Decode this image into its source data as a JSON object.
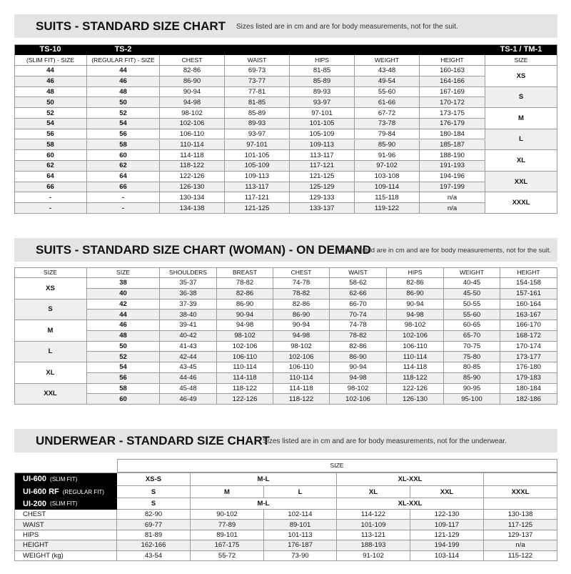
{
  "suits": {
    "title": "SUITS - STANDARD SIZE CHART",
    "note": "Sizes listed are in cm and are for body measurements, not for the suit.",
    "top_headers": [
      "TS-10",
      "TS-2",
      "TS-1 / TM-1"
    ],
    "headers": [
      "(SLIM FIT) - SIZE",
      "(REGULAR FIT) - SIZE",
      "CHEST",
      "WAIST",
      "HIPS",
      "WEIGHT",
      "HEIGHT",
      "SIZE"
    ],
    "rows": [
      [
        "44",
        "44",
        "82-86",
        "69-73",
        "81-85",
        "43-48",
        "160-163"
      ],
      [
        "46",
        "46",
        "86-90",
        "73-77",
        "85-89",
        "49-54",
        "164-166"
      ],
      [
        "48",
        "48",
        "90-94",
        "77-81",
        "89-93",
        "55-60",
        "167-169"
      ],
      [
        "50",
        "50",
        "94-98",
        "81-85",
        "93-97",
        "61-66",
        "170-172"
      ],
      [
        "52",
        "52",
        "98-102",
        "85-89",
        "97-101",
        "67-72",
        "173-175"
      ],
      [
        "54",
        "54",
        "102-106",
        "89-93",
        "101-105",
        "73-78",
        "176-179"
      ],
      [
        "56",
        "56",
        "106-110",
        "93-97",
        "105-109",
        "79-84",
        "180-184"
      ],
      [
        "58",
        "58",
        "110-114",
        "97-101",
        "109-113",
        "85-90",
        "185-187"
      ],
      [
        "60",
        "60",
        "114-118",
        "101-105",
        "113-117",
        "91-96",
        "188-190"
      ],
      [
        "62",
        "62",
        "118-122",
        "105-109",
        "117-121",
        "97-102",
        "191-193"
      ],
      [
        "64",
        "64",
        "122-126",
        "109-113",
        "121-125",
        "103-108",
        "194-196"
      ],
      [
        "66",
        "66",
        "126-130",
        "113-117",
        "125-129",
        "109-114",
        "197-199"
      ],
      [
        "-",
        "-",
        "130-134",
        "117-121",
        "129-133",
        "115-118",
        "n/a"
      ],
      [
        "-",
        "-",
        "134-138",
        "121-125",
        "133-137",
        "119-122",
        "n/a"
      ]
    ],
    "sizes": [
      "XS",
      "S",
      "M",
      "L",
      "XL",
      "XXL",
      "XXXL"
    ]
  },
  "woman": {
    "title": "SUITS - STANDARD SIZE CHART (WOMAN) - ON DEMAND",
    "note": "Sizes listed are in cm and are for body measurements, not for the suit.",
    "headers": [
      "SIZE",
      "SIZE",
      "SHOULDERS",
      "BREAST",
      "CHEST",
      "WAIST",
      "HIPS",
      "WEIGHT",
      "HEIGHT"
    ],
    "rows": [
      [
        "38",
        "35-37",
        "78-82",
        "74-78",
        "58-62",
        "82-86",
        "40-45",
        "154-158"
      ],
      [
        "40",
        "36-38",
        "82-86",
        "78-82",
        "62-66",
        "86-90",
        "45-50",
        "157-161"
      ],
      [
        "42",
        "37-39",
        "86-90",
        "82-86",
        "66-70",
        "90-94",
        "50-55",
        "160-164"
      ],
      [
        "44",
        "38-40",
        "90-94",
        "86-90",
        "70-74",
        "94-98",
        "55-60",
        "163-167"
      ],
      [
        "46",
        "39-41",
        "94-98",
        "90-94",
        "74-78",
        "98-102",
        "60-65",
        "166-170"
      ],
      [
        "48",
        "40-42",
        "98-102",
        "94-98",
        "78-82",
        "102-106",
        "65-70",
        "168-172"
      ],
      [
        "50",
        "41-43",
        "102-106",
        "98-102",
        "82-86",
        "106-110",
        "70-75",
        "170-174"
      ],
      [
        "52",
        "42-44",
        "106-110",
        "102-106",
        "86-90",
        "110-114",
        "75-80",
        "173-177"
      ],
      [
        "54",
        "43-45",
        "110-114",
        "106-110",
        "90-94",
        "114-118",
        "80-85",
        "176-180"
      ],
      [
        "56",
        "44-46",
        "114-118",
        "110-114",
        "94-98",
        "118-122",
        "85-90",
        "179-183"
      ],
      [
        "58",
        "45-48",
        "118-122",
        "114-118",
        "98-102",
        "122-126",
        "90-95",
        "180-184"
      ],
      [
        "60",
        "46-49",
        "122-126",
        "118-122",
        "102-106",
        "126-130",
        "95-100",
        "182-186"
      ]
    ],
    "sizes": [
      "XS",
      "S",
      "M",
      "L",
      "XL",
      "XXL"
    ]
  },
  "underwear": {
    "title": "UNDERWEAR - STANDARD SIZE CHART",
    "note": "Sizes listed are in cm and are for body measurements, not for the underwear.",
    "size_header": "SIZE",
    "lines": [
      {
        "name": "UI-600",
        "fit": "(SLIM FIT)",
        "cells": [
          "XS-S",
          "M-L",
          "XL-XXL"
        ]
      },
      {
        "name": "UI-600 RF",
        "fit": "(REGULAR FIT)",
        "cells": [
          "S",
          "M",
          "L",
          "XL",
          "XXL",
          "XXXL"
        ]
      },
      {
        "name": "UI-200",
        "fit": "(SLIM FIT)",
        "cells": [
          "S",
          "M-L",
          "XL-XXL"
        ]
      }
    ],
    "rows": [
      {
        "label": "CHEST",
        "values": [
          "82-90",
          "90-102",
          "102-114",
          "114-122",
          "122-130",
          "130-138"
        ]
      },
      {
        "label": "WAIST",
        "values": [
          "69-77",
          "77-89",
          "89-101",
          "101-109",
          "109-117",
          "117-125"
        ]
      },
      {
        "label": "HIPS",
        "values": [
          "81-89",
          "89-101",
          "101-113",
          "113-121",
          "121-129",
          "129-137"
        ]
      },
      {
        "label": "HEIGHT",
        "values": [
          "162-166",
          "167-175",
          "176-187",
          "188-193",
          "194-199",
          "n/a"
        ]
      },
      {
        "label": "WEIGHT (kg)",
        "values": [
          "43-54",
          "55-72",
          "73-90",
          "91-102",
          "103-114",
          "115-122"
        ]
      }
    ]
  }
}
